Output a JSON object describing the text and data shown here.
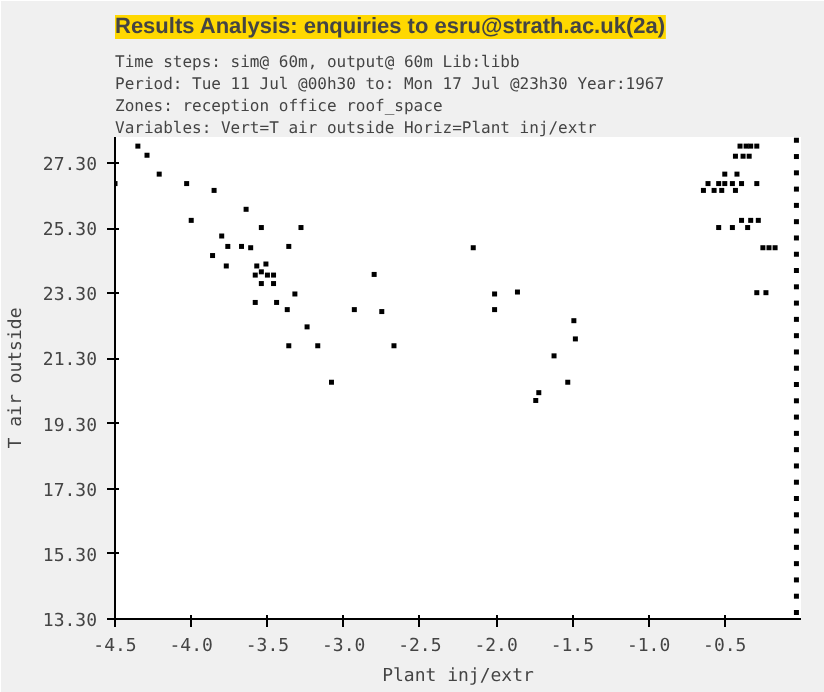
{
  "chart_data": {
    "type": "scatter",
    "title": "Results Analysis: enquiries to esru@strath.ac.uk(2a)",
    "annotations": [
      "Time steps: sim@ 60m, output@ 60m            Lib:libb",
      "Period: Tue 11 Jul @00h30 to: Mon 17 Jul @23h30 Year:1967",
      " Zones: reception office roof_space",
      "         Variables: Vert=T air outside    Horiz=Plant inj/extr"
    ],
    "xlabel": "Plant inj/extr",
    "ylabel": "T air outside",
    "xlim": [
      -4.5,
      0.0
    ],
    "ylim": [
      13.3,
      28.1
    ],
    "xticks": [
      {
        "value": -4.5,
        "label": "-4.5"
      },
      {
        "value": -4.0,
        "label": "-4.0"
      },
      {
        "value": -3.5,
        "label": "-3.5"
      },
      {
        "value": -3.0,
        "label": "-3.0"
      },
      {
        "value": -2.5,
        "label": "-2.5"
      },
      {
        "value": -2.0,
        "label": "-2.0"
      },
      {
        "value": -1.5,
        "label": "-1.5"
      },
      {
        "value": -1.0,
        "label": "-1.0"
      },
      {
        "value": -0.5,
        "label": "-0.5"
      }
    ],
    "yticks": [
      {
        "value": 13.3,
        "label": "13.30"
      },
      {
        "value": 15.3,
        "label": "15.30"
      },
      {
        "value": 17.3,
        "label": "17.30"
      },
      {
        "value": 19.3,
        "label": "19.30"
      },
      {
        "value": 21.3,
        "label": "21.30"
      },
      {
        "value": 23.3,
        "label": "23.30"
      },
      {
        "value": 25.3,
        "label": "25.30"
      },
      {
        "value": 27.3,
        "label": "27.30"
      }
    ],
    "grid": false,
    "marker": "square",
    "series": [
      {
        "color": "#000000",
        "x": [
          -4.35,
          -4.29,
          -4.21,
          -4.03,
          -4.5,
          -3.85,
          -4.0,
          -3.64,
          -3.54,
          -3.28,
          -3.8,
          -3.76,
          -3.67,
          -3.61,
          -3.36,
          -3.86,
          -3.77,
          -3.57,
          -3.51,
          -3.54,
          -3.58,
          -3.5,
          -3.46,
          -3.54,
          -3.46,
          -3.32,
          -3.58,
          -3.44,
          -3.37,
          -3.24,
          -3.36,
          -3.17,
          -3.08,
          -2.8,
          -2.93,
          -2.75,
          -2.67,
          -2.15,
          -2.01,
          -1.86,
          -2.01,
          -1.49,
          -1.48,
          -1.62,
          -1.53,
          -1.72,
          -1.74,
          -0.4,
          -0.36,
          -0.33,
          -0.29,
          -0.43,
          -0.38,
          -0.34,
          -0.5,
          -0.42,
          -0.61,
          -0.54,
          -0.5,
          -0.45,
          -0.39,
          -0.29,
          -0.64,
          -0.57,
          -0.52,
          -0.43,
          -0.39,
          -0.33,
          -0.28,
          -0.54,
          -0.45,
          -0.35,
          -0.25,
          -0.21,
          -0.17,
          -0.29,
          -0.23,
          -0.03,
          -0.03,
          -0.03,
          -0.03,
          -0.03,
          -0.03,
          -0.03,
          -0.03,
          -0.03,
          -0.03,
          -0.03,
          -0.03,
          -0.03,
          -0.03,
          -0.03,
          -0.03,
          -0.03,
          -0.03,
          -0.03,
          -0.03,
          -0.03,
          -0.03,
          -0.03,
          -0.03,
          -0.03,
          -0.03,
          -0.03,
          -0.03,
          -0.03,
          -0.03
        ],
        "values": [
          27.82,
          27.54,
          26.96,
          26.67,
          26.67,
          26.46,
          25.54,
          25.88,
          25.32,
          25.32,
          25.06,
          24.74,
          24.74,
          24.7,
          24.74,
          24.46,
          24.14,
          24.14,
          24.2,
          23.96,
          23.86,
          23.86,
          23.86,
          23.6,
          23.6,
          23.28,
          23.02,
          23.02,
          22.8,
          22.27,
          21.69,
          21.69,
          20.57,
          23.88,
          22.8,
          22.74,
          21.69,
          24.7,
          23.28,
          23.34,
          22.8,
          22.46,
          21.9,
          21.38,
          20.57,
          20.25,
          20.01,
          27.82,
          27.82,
          27.82,
          27.82,
          27.51,
          27.51,
          27.51,
          26.96,
          26.96,
          26.67,
          26.67,
          26.67,
          26.67,
          26.67,
          26.67,
          26.46,
          26.46,
          26.46,
          26.46,
          25.54,
          25.54,
          25.54,
          25.32,
          25.32,
          25.32,
          24.7,
          24.7,
          24.7,
          23.32,
          23.32,
          13.5,
          14.0,
          14.5,
          15.0,
          15.5,
          16.0,
          16.5,
          17.0,
          17.5,
          18.0,
          18.5,
          19.0,
          19.5,
          20.0,
          20.5,
          21.0,
          21.5,
          22.0,
          22.5,
          23.0,
          23.5,
          24.0,
          24.5,
          25.0,
          25.5,
          26.0,
          26.5,
          27.0,
          27.5,
          28.0
        ]
      }
    ]
  }
}
